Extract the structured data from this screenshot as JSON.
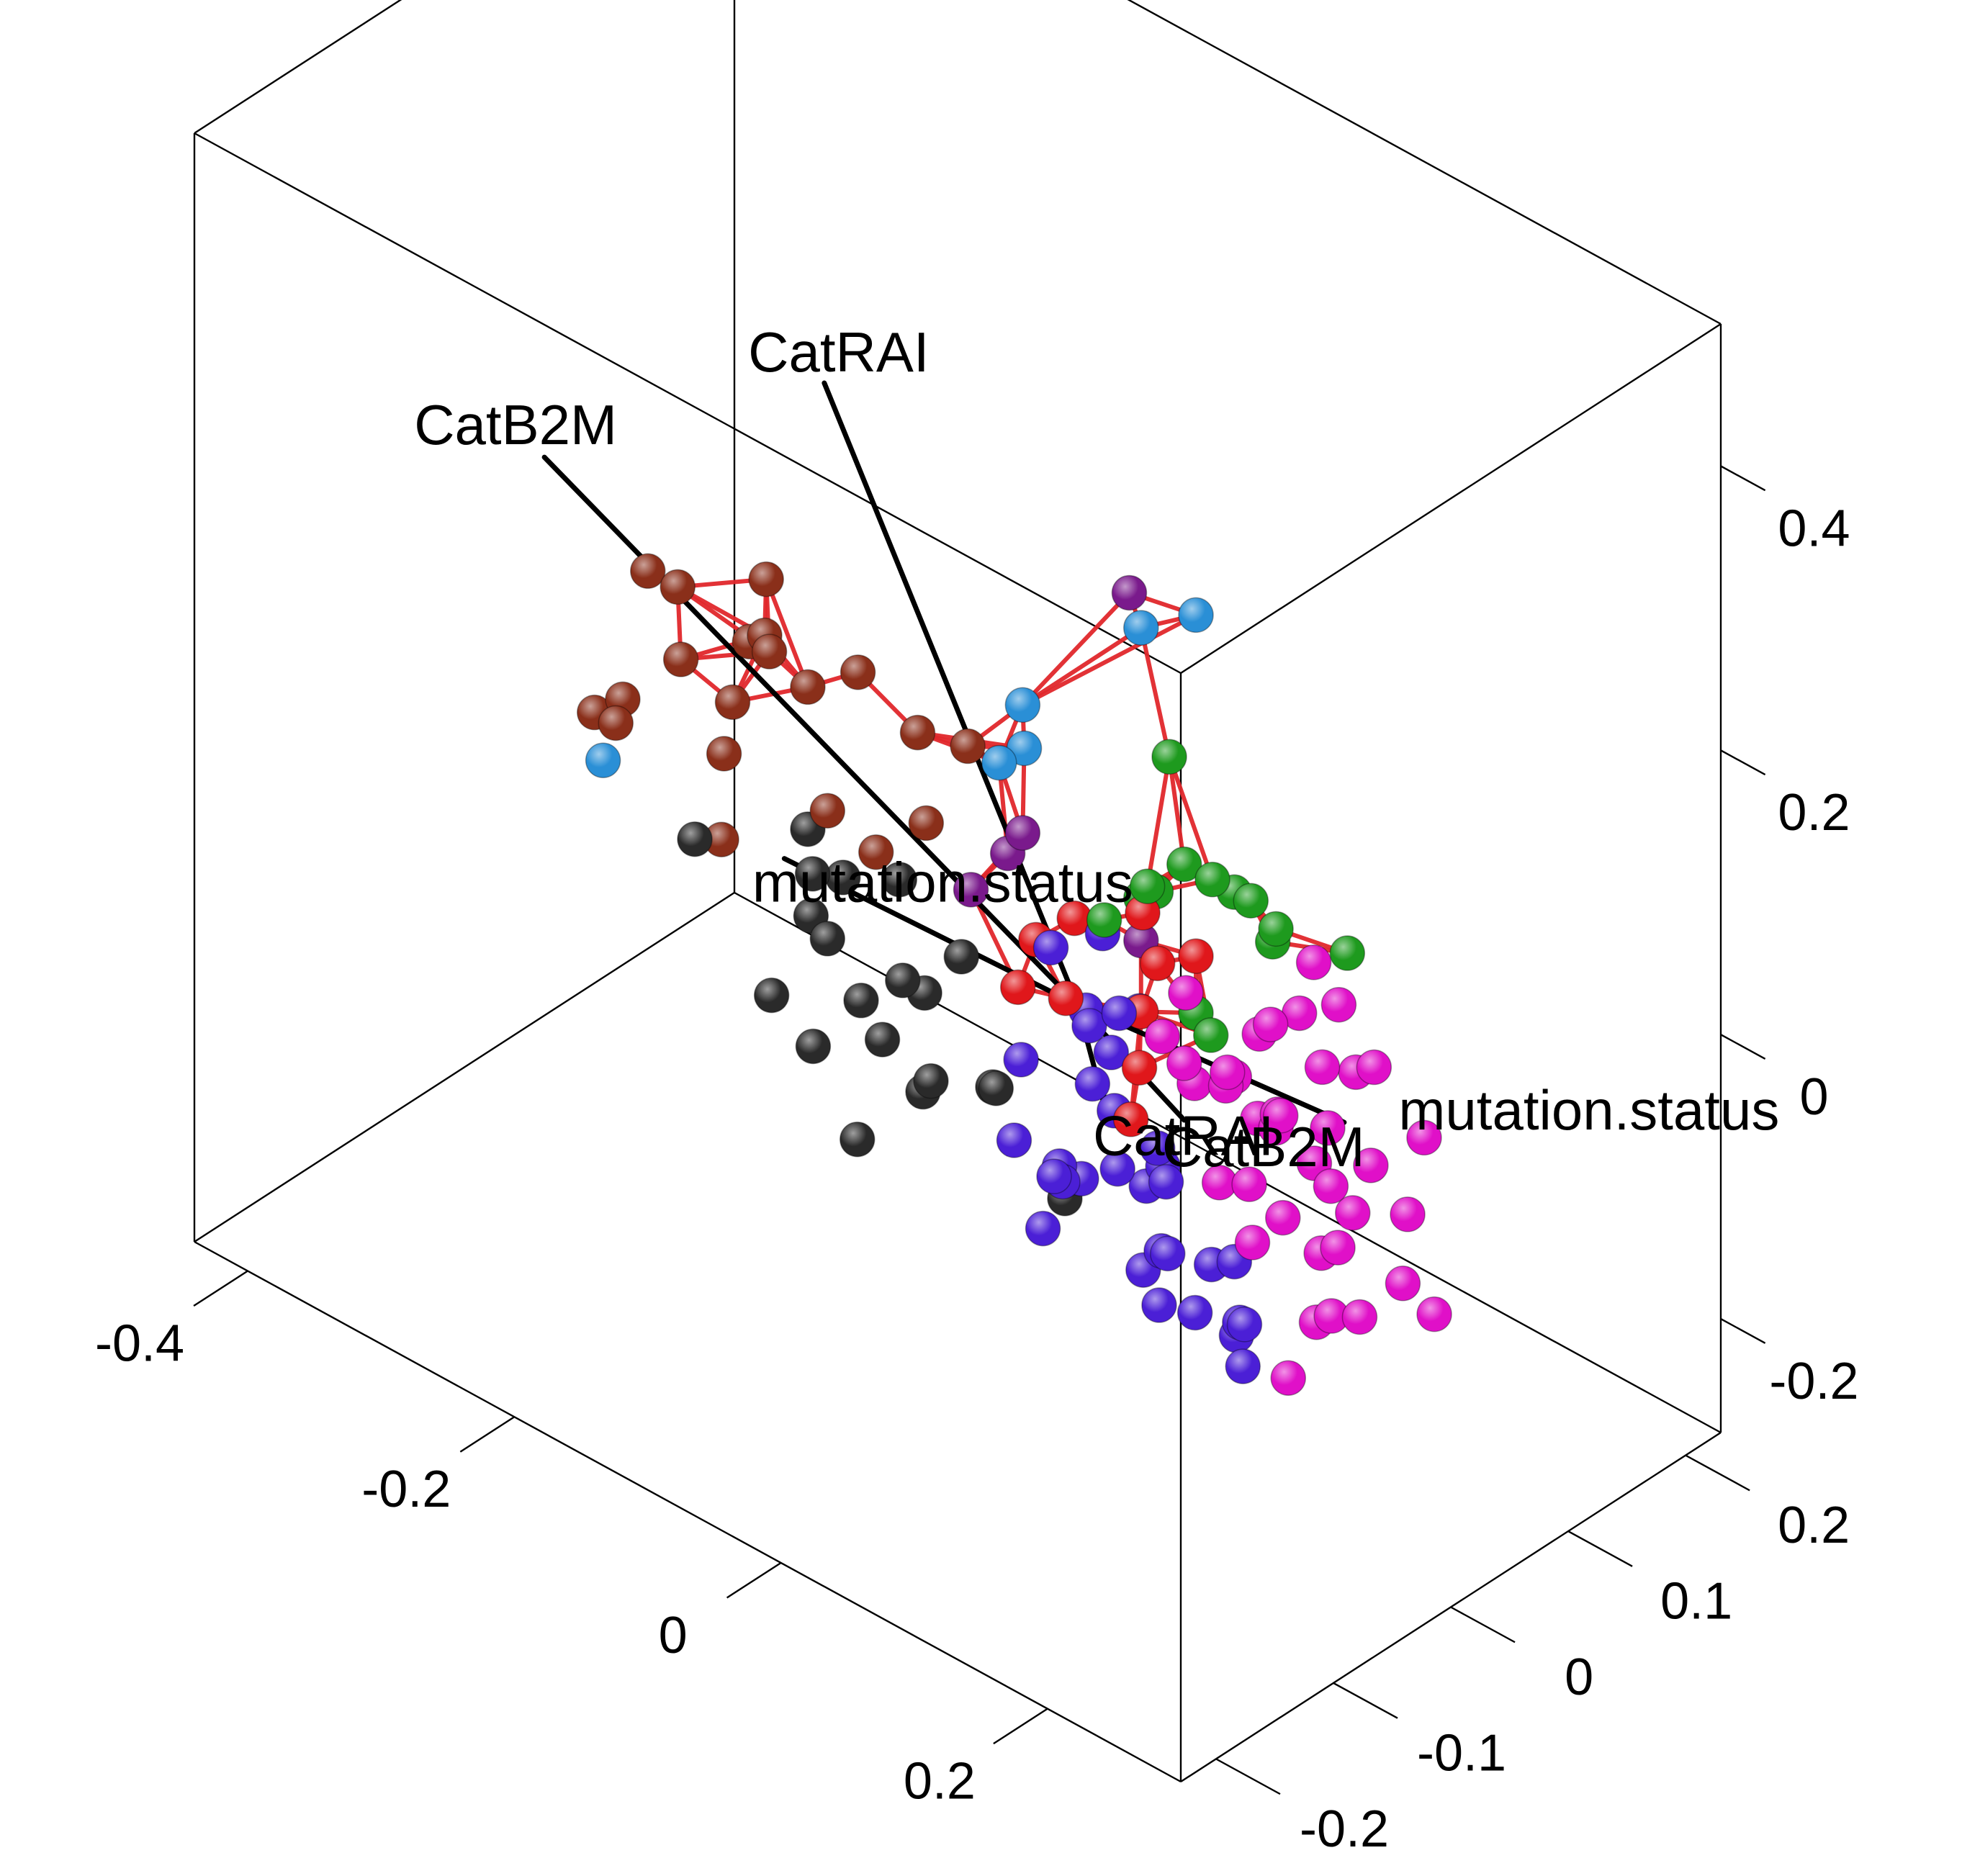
{
  "chart_data": {
    "type": "scatter",
    "dimension": "3d",
    "title": "",
    "axes": {
      "x": {
        "ticks": [
          "-0.4",
          "-0.2",
          "0",
          "0.2"
        ],
        "values": [
          -0.4,
          -0.2,
          0,
          0.2
        ],
        "lim": [
          -0.44,
          0.3
        ]
      },
      "y": {
        "ticks": [
          "-0.2",
          "-0.1",
          "0",
          "0.1",
          "0.2"
        ],
        "values": [
          -0.2,
          -0.1,
          0,
          0.1,
          0.2
        ],
        "lim": [
          -0.23,
          0.23
        ]
      },
      "z": {
        "ticks": [
          "-0.2",
          "0",
          "0.2",
          "0.4"
        ],
        "values": [
          -0.2,
          0,
          0.2,
          0.4
        ],
        "lim": [
          -0.28,
          0.5
        ]
      }
    },
    "variable_arrows": [
      {
        "label": "CatRAI",
        "from": [
          0.02,
          0.0,
          0.0
        ],
        "to": [
          -0.17,
          0.0,
          0.34
        ]
      },
      {
        "label": "CatRAI",
        "from": [
          0.02,
          0.0,
          0.0
        ],
        "to": [
          0.04,
          0.0,
          -0.06
        ]
      },
      {
        "label": "CatB2M",
        "from": [
          0.02,
          0.0,
          0.0
        ],
        "to": [
          -0.38,
          0.0,
          0.18
        ]
      },
      {
        "label": "CatB2M",
        "from": [
          0.02,
          0.0,
          0.0
        ],
        "to": [
          0.1,
          0.0,
          -0.04
        ]
      },
      {
        "label": "mutation.status",
        "from": [
          0.02,
          0.0,
          0.0
        ],
        "to": [
          0.22,
          0.0,
          0.02
        ]
      },
      {
        "label": "mutation.status",
        "from": [
          0.02,
          0.0,
          0.0
        ],
        "to": [
          -0.2,
          0.0,
          -0.01
        ]
      }
    ],
    "series": [
      {
        "color": "#8a2f1a",
        "points": [
          [
            -0.32,
            0.02,
            0.12
          ],
          [
            -0.28,
            0.0,
            0.14
          ],
          [
            -0.24,
            0.03,
            0.15
          ],
          [
            -0.26,
            -0.02,
            0.11
          ],
          [
            -0.22,
            0.01,
            0.12
          ],
          [
            -0.25,
            0.04,
            0.1
          ],
          [
            -0.23,
            -0.01,
            0.09
          ],
          [
            -0.2,
            0.02,
            0.1
          ],
          [
            -0.27,
            0.05,
            0.08
          ],
          [
            -0.3,
            -0.03,
            0.05
          ],
          [
            -0.33,
            0.01,
            0.03
          ],
          [
            -0.36,
            0.02,
            0.0
          ],
          [
            -0.15,
            -0.02,
            0.06
          ],
          [
            -0.12,
            0.03,
            0.04
          ],
          [
            -0.1,
            0.0,
            0.13
          ],
          [
            -0.08,
            0.02,
            0.12
          ],
          [
            -0.14,
            0.01,
            0.02
          ],
          [
            -0.3,
            0.06,
            -0.08
          ],
          [
            -0.18,
            0.04,
            0.11
          ],
          [
            -0.21,
            -0.04,
            0.08
          ]
        ]
      },
      {
        "color": "#2a2a2a",
        "points": [
          [
            -0.2,
            0.02,
            0.0
          ],
          [
            -0.17,
            -0.01,
            0.0
          ],
          [
            -0.14,
            0.03,
            -0.01
          ],
          [
            -0.18,
            0.0,
            -0.04
          ],
          [
            -0.15,
            -0.02,
            -0.03
          ],
          [
            -0.12,
            0.01,
            -0.06
          ],
          [
            -0.1,
            -0.03,
            -0.07
          ],
          [
            -0.13,
            0.04,
            -0.09
          ],
          [
            -0.16,
            0.02,
            -0.1
          ],
          [
            -0.09,
            0.0,
            -0.11
          ],
          [
            -0.11,
            -0.04,
            -0.14
          ],
          [
            -0.07,
            0.03,
            -0.12
          ],
          [
            -0.05,
            0.01,
            -0.1
          ],
          [
            -0.14,
            0.05,
            -0.17
          ],
          [
            -0.32,
            0.06,
            -0.09
          ],
          [
            -0.28,
            0.08,
            -0.19
          ],
          [
            -0.24,
            0.07,
            -0.2
          ],
          [
            -0.06,
            0.08,
            -0.22
          ],
          [
            -0.12,
            0.06,
            -0.07
          ],
          [
            -0.2,
            0.05,
            -0.05
          ]
        ]
      },
      {
        "color": "#4b1fd6",
        "points": [
          [
            0.02,
            0.01,
            -0.02
          ],
          [
            0.0,
            0.03,
            -0.03
          ],
          [
            0.04,
            -0.01,
            -0.04
          ],
          [
            0.01,
            0.04,
            -0.06
          ],
          [
            0.03,
            0.02,
            -0.08
          ],
          [
            0.05,
            0.0,
            -0.1
          ],
          [
            0.02,
            -0.02,
            -0.11
          ],
          [
            0.06,
            0.03,
            -0.12
          ],
          [
            0.04,
            0.05,
            -0.13
          ],
          [
            0.0,
            0.01,
            -0.14
          ],
          [
            -0.02,
            0.03,
            -0.15
          ],
          [
            0.07,
            0.02,
            -0.16
          ],
          [
            0.09,
            -0.01,
            -0.17
          ],
          [
            -0.03,
            0.06,
            -0.18
          ],
          [
            0.03,
            0.06,
            -0.2
          ],
          [
            0.05,
            0.08,
            -0.21
          ],
          [
            -0.05,
            0.05,
            -0.22
          ],
          [
            0.08,
            0.07,
            -0.23
          ],
          [
            0.1,
            0.05,
            -0.24
          ],
          [
            -0.01,
            0.09,
            -0.25
          ],
          [
            0.02,
            0.1,
            -0.27
          ],
          [
            0.06,
            0.09,
            -0.26
          ],
          [
            0.11,
            0.04,
            -0.2
          ],
          [
            0.12,
            0.02,
            -0.14
          ],
          [
            -0.04,
            0.02,
            -0.08
          ],
          [
            0.0,
            0.0,
            0.03
          ],
          [
            0.03,
            0.01,
            0.05
          ],
          [
            0.06,
            -0.01,
            0.02
          ],
          [
            -0.01,
            -0.02,
            -0.1
          ],
          [
            0.08,
            0.0,
            -0.07
          ],
          [
            0.01,
            0.07,
            -0.17
          ],
          [
            0.04,
            0.03,
            -0.01
          ]
        ]
      },
      {
        "color": "#e010c8",
        "points": [
          [
            0.1,
            0.0,
            0.0
          ],
          [
            0.12,
            0.02,
            -0.01
          ],
          [
            0.14,
            -0.01,
            0.01
          ],
          [
            0.16,
            0.01,
            -0.02
          ],
          [
            0.13,
            0.03,
            0.02
          ],
          [
            0.15,
            -0.02,
            0.03
          ],
          [
            0.17,
            0.0,
            0.0
          ],
          [
            0.11,
            -0.03,
            0.04
          ],
          [
            0.18,
            0.02,
            -0.04
          ],
          [
            0.12,
            0.04,
            -0.05
          ],
          [
            0.14,
            0.01,
            -0.07
          ],
          [
            0.16,
            -0.01,
            -0.09
          ],
          [
            0.1,
            0.03,
            -0.1
          ],
          [
            0.13,
            0.05,
            -0.12
          ],
          [
            0.15,
            0.06,
            -0.14
          ],
          [
            0.18,
            0.04,
            -0.11
          ],
          [
            0.2,
            0.03,
            -0.07
          ],
          [
            0.21,
            0.0,
            -0.03
          ],
          [
            0.19,
            -0.02,
            0.02
          ],
          [
            0.22,
            0.01,
            0.05
          ],
          [
            0.23,
            -0.03,
            0.08
          ],
          [
            0.2,
            -0.04,
            0.1
          ],
          [
            0.24,
            0.0,
            0.0
          ],
          [
            0.25,
            0.02,
            -0.04
          ],
          [
            0.17,
            0.07,
            -0.18
          ],
          [
            0.14,
            0.08,
            -0.2
          ],
          [
            0.12,
            0.09,
            -0.22
          ],
          [
            0.22,
            0.05,
            -0.12
          ],
          [
            0.27,
            0.02,
            -0.1
          ],
          [
            0.26,
            -0.02,
            0.09
          ],
          [
            0.28,
            0.0,
            0.04
          ],
          [
            0.26,
            -0.05,
            0.15
          ],
          [
            0.25,
            -0.06,
            0.18
          ],
          [
            0.09,
            0.1,
            -0.28
          ],
          [
            0.11,
            -0.01,
            0.06
          ],
          [
            0.09,
            0.02,
            -0.03
          ],
          [
            0.19,
            0.02,
            -0.01
          ],
          [
            0.16,
            0.03,
            0.05
          ]
        ]
      },
      {
        "color": "#1e9a1e",
        "points": [
          [
            0.08,
            0.01,
            0.2
          ],
          [
            0.1,
            0.0,
            0.14
          ],
          [
            0.13,
            -0.01,
            0.15
          ],
          [
            0.15,
            0.0,
            0.14
          ],
          [
            0.12,
            0.02,
            0.12
          ],
          [
            0.09,
            -0.02,
            0.13
          ],
          [
            0.07,
            0.01,
            0.1
          ],
          [
            0.05,
            0.02,
            0.08
          ],
          [
            0.04,
            0.0,
            0.07
          ],
          [
            0.14,
            0.03,
            0.09
          ],
          [
            0.1,
            0.01,
            0.03
          ],
          [
            0.12,
            0.0,
            0.03
          ],
          [
            0.16,
            0.01,
            0.12
          ],
          [
            0.24,
            -0.02,
            0.16
          ]
        ]
      },
      {
        "color": "#e0171b",
        "points": [
          [
            0.06,
            0.01,
            0.08
          ],
          [
            0.08,
            0.0,
            0.06
          ],
          [
            0.0,
            0.02,
            0.04
          ],
          [
            -0.02,
            0.01,
            0.02
          ],
          [
            0.02,
            -0.01,
            0.01
          ],
          [
            0.04,
            0.03,
            -0.05
          ],
          [
            0.06,
            0.0,
            -0.06
          ],
          [
            -0.06,
            0.04,
            -0.05
          ],
          [
            0.05,
            0.02,
            0.0
          ],
          [
            0.1,
            0.01,
            0.07
          ]
        ]
      },
      {
        "color": "#7a1a8c",
        "points": [
          [
            0.05,
            0.01,
            0.3
          ],
          [
            -0.03,
            0.01,
            0.09
          ],
          [
            -0.05,
            0.02,
            0.06
          ],
          [
            -0.06,
            0.0,
            0.04
          ],
          [
            0.05,
            0.02,
            0.05
          ]
        ]
      },
      {
        "color": "#2a8fd6",
        "points": [
          [
            0.1,
            0.01,
            0.31
          ],
          [
            0.05,
            0.02,
            0.27
          ],
          [
            -0.03,
            0.01,
            0.18
          ],
          [
            -0.02,
            0.0,
            0.16
          ],
          [
            -0.03,
            -0.01,
            0.15
          ],
          [
            -0.38,
            0.05,
            -0.06
          ]
        ]
      }
    ],
    "hull_series_color": "#e0272b"
  }
}
